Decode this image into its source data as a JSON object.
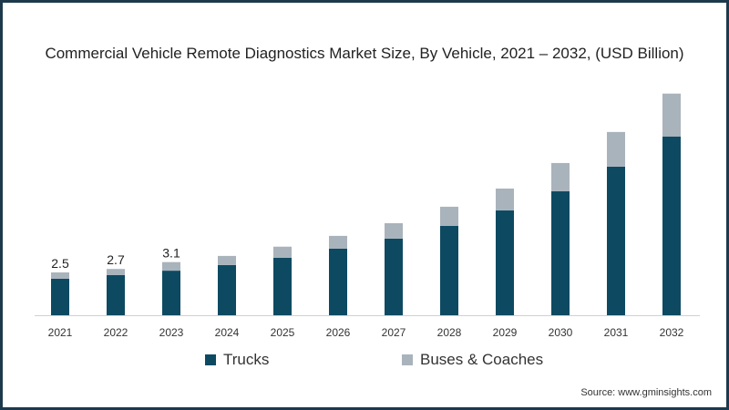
{
  "chart_data": {
    "type": "bar",
    "stacked": true,
    "title": "Commercial Vehicle Remote Diagnostics Market Size, By Vehicle, 2021 – 2032, (USD Billion)",
    "xlabel": "",
    "ylabel": "",
    "ylim": [
      0,
      13.5
    ],
    "grid": false,
    "legend_position": "bottom",
    "categories": [
      "2021",
      "2022",
      "2023",
      "2024",
      "2025",
      "2026",
      "2027",
      "2028",
      "2029",
      "2030",
      "2031",
      "2032"
    ],
    "series": [
      {
        "name": "Trucks",
        "color": "#0d4a62",
        "values": [
          2.13,
          2.34,
          2.6,
          2.93,
          3.35,
          3.88,
          4.47,
          5.21,
          6.12,
          7.23,
          8.67,
          10.43
        ]
      },
      {
        "name": "Buses & Coaches",
        "color": "#a9b3bb",
        "values": [
          0.37,
          0.36,
          0.5,
          0.53,
          0.65,
          0.75,
          0.9,
          1.12,
          1.27,
          1.65,
          2.02,
          2.5
        ]
      }
    ],
    "data_labels": [
      {
        "category": "2021",
        "text": "2.5"
      },
      {
        "category": "2022",
        "text": "2.7"
      },
      {
        "category": "2023",
        "text": "3.1"
      }
    ]
  },
  "source": "Source: www.gminsights.com"
}
